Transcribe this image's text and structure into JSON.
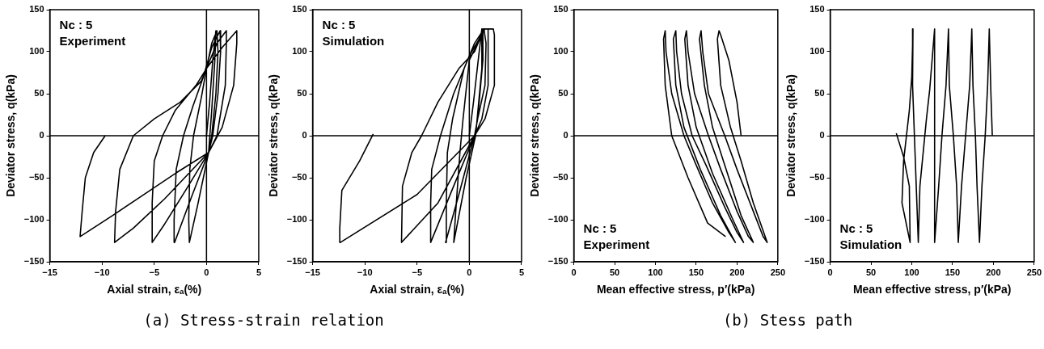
{
  "chart_data": [
    {
      "type": "line",
      "title": "(a) Stress-strain relation",
      "xlabel": "Axial strain, εₐ(%)",
      "ylabel": "Deviator stress, q(kPa)",
      "xlim": [
        -15,
        5
      ],
      "xticks": [
        -15,
        -10,
        -5,
        0,
        5
      ],
      "ylim": [
        -150,
        150
      ],
      "yticks": [
        -150,
        -100,
        -50,
        0,
        50,
        100,
        150
      ],
      "grid": false,
      "legend": false,
      "marker": "none",
      "line_style": "solid",
      "annotations": [
        "Nc : 5",
        "Experiment"
      ],
      "ref_lines": [
        {
          "axis": "x",
          "value": 0
        },
        {
          "axis": "y",
          "value": 0
        }
      ],
      "series": [
        {
          "color": "#000000",
          "x": [
            0,
            0.3,
            0.6,
            0.9,
            0.8,
            0.5,
            0.2,
            -0.8,
            -1.64,
            -1.7,
            -1.6,
            -1.24,
            -0.5,
            0,
            0.5,
            1.0,
            1.1,
            0.9,
            0.5,
            0.2,
            -1.5,
            -3.05,
            -3.1,
            -2.9,
            -2.2,
            -1.3,
            -0.3,
            0.5,
            1.3,
            1.35,
            1.1,
            0.6,
            0.2,
            -2,
            -4,
            -5.2,
            -5.2,
            -5,
            -4.2,
            -3,
            -1,
            0,
            1,
            1.9,
            1.9,
            1.8,
            1,
            0.2,
            -4,
            -7,
            -8.8,
            -8.7,
            -8.3,
            -7,
            -5,
            -2.5,
            -0.5,
            0,
            1.5,
            2.9,
            2.9,
            2.6,
            1.5,
            0.2,
            -3,
            -6,
            -9,
            -12.1,
            -11.9,
            -11.6,
            -10.8,
            -9.7
          ],
          "values": [
            0,
            40,
            90,
            125,
            90,
            30,
            -20,
            -80,
            -127,
            -100,
            -40,
            0,
            45,
            80,
            110,
            125,
            100,
            50,
            0,
            -20,
            -75,
            -127,
            -100,
            -40,
            0,
            35,
            70,
            105,
            125,
            100,
            50,
            0,
            -20,
            -65,
            -105,
            -127,
            -80,
            -30,
            0,
            30,
            60,
            80,
            110,
            125,
            110,
            60,
            0,
            -20,
            -75,
            -110,
            -127,
            -90,
            -40,
            0,
            20,
            40,
            65,
            80,
            105,
            125,
            110,
            60,
            10,
            -20,
            -45,
            -70,
            -95,
            -120,
            -90,
            -50,
            -20,
            0
          ]
        }
      ]
    },
    {
      "type": "line",
      "xlabel": "Axial strain, εₐ(%)",
      "ylabel": "Deviator stress, q(kPa)",
      "xlim": [
        -15,
        5
      ],
      "xticks": [
        -15,
        -10,
        -5,
        0,
        5
      ],
      "ylim": [
        -150,
        150
      ],
      "yticks": [
        -150,
        -100,
        -50,
        0,
        50,
        100,
        150
      ],
      "grid": false,
      "legend": false,
      "marker": "none",
      "line_style": "solid",
      "annotations": [
        "Nc : 5",
        "Simulation"
      ],
      "ref_lines": [
        {
          "axis": "x",
          "value": 0
        },
        {
          "axis": "y",
          "value": 0
        }
      ],
      "series": [
        {
          "color": "#000000",
          "x": [
            0,
            0.4,
            0.9,
            1.2,
            1.2,
            0.6,
            -0.3,
            -1.49,
            -1.3,
            -0.9,
            -0.6,
            0,
            0.8,
            1.3,
            1.3,
            0.8,
            0.5,
            -1,
            -2.27,
            -2.2,
            -2.1,
            -1.6,
            -0.5,
            0.5,
            1.4,
            1.6,
            1.5,
            0.8,
            0.5,
            -1.5,
            -3.7,
            -3.7,
            -3.6,
            -2.76,
            -1.5,
            0,
            1.5,
            1.8,
            1.8,
            1.2,
            0.5,
            -3,
            -6.49,
            -6.4,
            -5.5,
            -4.57,
            -3,
            -1,
            0.5,
            1.4,
            2.3,
            2.4,
            2.4,
            1.5,
            0.5,
            -5,
            -12.35,
            -12.4,
            -12.2,
            -10.5,
            -9.2
          ],
          "values": [
            0,
            40,
            95,
            127,
            80,
            0,
            -50,
            -127,
            -90,
            -20,
            20,
            90,
            110,
            127,
            90,
            20,
            0,
            -70,
            -127,
            -80,
            -20,
            20,
            80,
            110,
            127,
            110,
            60,
            20,
            0,
            -60,
            -127,
            -80,
            -40,
            0,
            50,
            95,
            127,
            127,
            60,
            20,
            0,
            -80,
            -127,
            -60,
            -20,
            0,
            40,
            80,
            100,
            127,
            127,
            120,
            60,
            20,
            0,
            -70,
            -127,
            -110,
            -65,
            -30,
            2
          ]
        }
      ]
    },
    {
      "type": "line",
      "title": "(b) Stess path",
      "xlabel": "Mean effective stress, p′(kPa)",
      "ylabel": "Deviator stress, q(kPa)",
      "xlim": [
        0,
        250
      ],
      "xticks": [
        0,
        50,
        100,
        150,
        200,
        250
      ],
      "ylim": [
        -150,
        150
      ],
      "yticks": [
        -150,
        -100,
        -50,
        0,
        50,
        100,
        150
      ],
      "grid": false,
      "legend": false,
      "marker": "none",
      "line_style": "solid",
      "annotations": [
        "Nc : 5",
        "Experiment"
      ],
      "ref_lines": [
        {
          "axis": "y",
          "value": 0
        }
      ],
      "series": [
        {
          "color": "#000000",
          "x": [
            205,
            200,
            190,
            180,
            178,
            176,
            180,
            192,
            205,
            220,
            237,
            232,
            220,
            200,
            185,
            165,
            158,
            156,
            154,
            160,
            170,
            185,
            205,
            220,
            214,
            200,
            180,
            165,
            148,
            140,
            138,
            136,
            140,
            150,
            170,
            195,
            208,
            200,
            185,
            162,
            145,
            132,
            126,
            125,
            122,
            125,
            135,
            155,
            180,
            198,
            190,
            170,
            150,
            135,
            120,
            113,
            112,
            110,
            112,
            120,
            140,
            164,
            186
          ],
          "values": [
            0,
            40,
            90,
            120,
            125,
            115,
            60,
            10,
            -30,
            -80,
            -127,
            -120,
            -90,
            -40,
            0,
            50,
            100,
            125,
            115,
            60,
            10,
            -35,
            -95,
            -127,
            -120,
            -90,
            -40,
            0,
            50,
            100,
            125,
            115,
            60,
            10,
            -45,
            -100,
            -127,
            -115,
            -85,
            -35,
            0,
            50,
            100,
            125,
            115,
            60,
            10,
            -40,
            -95,
            -127,
            -115,
            -80,
            -35,
            0,
            50,
            100,
            125,
            115,
            60,
            0,
            -50,
            -104,
            -120
          ]
        }
      ]
    },
    {
      "type": "line",
      "xlabel": "Mean effective stress, p′(kPa)",
      "ylabel": "Deviator stress, q(kPa)",
      "xlim": [
        0,
        250
      ],
      "xticks": [
        0,
        50,
        100,
        150,
        200,
        250
      ],
      "ylim": [
        -150,
        150
      ],
      "yticks": [
        -150,
        -100,
        -50,
        0,
        50,
        100,
        150
      ],
      "grid": false,
      "legend": false,
      "marker": "none",
      "line_style": "solid",
      "annotations": [
        "Nc : 5",
        "Simulation"
      ],
      "ref_lines": [
        {
          "axis": "y",
          "value": 0
        }
      ],
      "series": [
        {
          "color": "#000000",
          "x": [
            81,
            90,
            97,
            98,
            88,
            90,
            97,
            100,
            101.5,
            101,
            104,
            108,
            110,
            118,
            122,
            128,
            128,
            133,
            137,
            142,
            145,
            146,
            151,
            155,
            157,
            161,
            166,
            171,
            173.6,
            175,
            178,
            180,
            183,
            186,
            190,
            193,
            195,
            197,
            198.7
          ],
          "values": [
            3,
            -25,
            -60,
            -127,
            -80,
            -30,
            30,
            70,
            127,
            60,
            -20,
            -127,
            -60,
            20,
            55,
            127,
            -127,
            -60,
            0,
            60,
            127,
            60,
            0,
            -60,
            -127,
            -60,
            0,
            60,
            127,
            60,
            0,
            -60,
            -127,
            -60,
            0,
            60,
            127,
            50,
            0
          ]
        }
      ]
    }
  ]
}
